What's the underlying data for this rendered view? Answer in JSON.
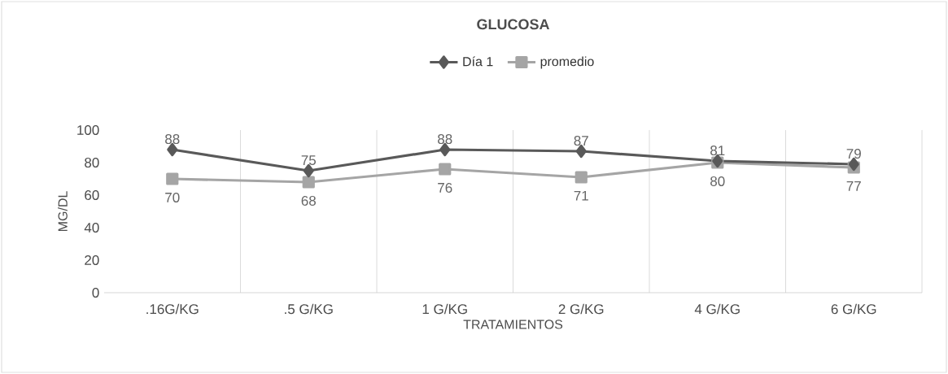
{
  "chart_data": {
    "type": "line",
    "title": "GLUCOSA",
    "xlabel": "TRATAMIENTOS",
    "ylabel": "MG/DL",
    "categories": [
      ".16G/KG",
      ".5 G/KG",
      "1 G/KG",
      "2 G/KG",
      "4 G/KG",
      "6 G/KG"
    ],
    "series": [
      {
        "name": "promedio",
        "color": "#a5a5a5",
        "marker": "square",
        "values": [
          70,
          68,
          76,
          71,
          80,
          77
        ]
      },
      {
        "name": "Día 1",
        "color": "#595959",
        "marker": "diamond",
        "values": [
          88,
          75,
          88,
          87,
          81,
          79
        ]
      }
    ],
    "ylim": [
      0,
      100
    ],
    "yticks": [
      0,
      20,
      40,
      60,
      80,
      100
    ],
    "grid": "x",
    "legend": "top",
    "data_labels": true,
    "line_style": "solid"
  }
}
